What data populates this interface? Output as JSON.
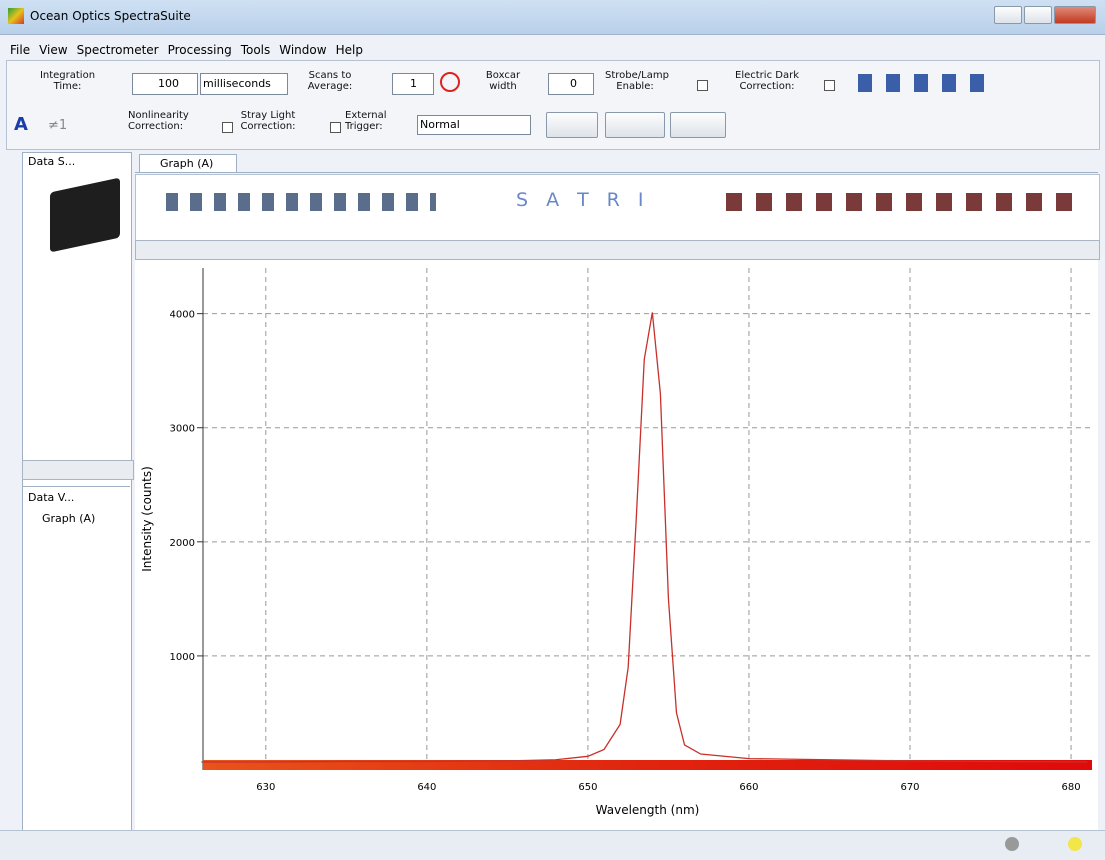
{
  "window": {
    "title": "Ocean Optics SpectraSuite"
  },
  "menu": [
    "File",
    "View",
    "Spectrometer",
    "Processing",
    "Tools",
    "Window",
    "Help"
  ],
  "toolbar": {
    "integration_time_label": "Integration Time:",
    "integration_time_value": 100,
    "integration_time_unit": "milliseconds",
    "scans_label": "Scans to Average:",
    "scans_value": 1,
    "boxcar_label": "Boxcar width",
    "boxcar_value": 0,
    "strobe_label": "Strobe/Lamp Enable:",
    "dark_label": "Electric Dark Correction:",
    "font_icon": "A",
    "not_equal_icon": "≠1",
    "nonlinearity_label": "Nonlinearity Correction:",
    "stray_label": "Stray Light Correction:",
    "trigger_label": "External Trigger:",
    "trigger_mode": "Normal"
  },
  "panels": {
    "data_sources": "Data S...",
    "data_views": "Data V...",
    "tree_item": "Graph (A)",
    "tab": "Graph (A)"
  },
  "graph_toolbar_letters": [
    "S",
    "A",
    "T",
    "R",
    "I"
  ],
  "chart_data": {
    "type": "line",
    "x_label": "Wavelength (nm)",
    "y_label": "Intensity (counts)",
    "x": [
      626,
      630,
      635,
      640,
      645,
      648,
      650,
      651,
      652,
      652.5,
      653,
      653.5,
      654,
      654.5,
      655,
      655.5,
      656,
      657,
      660,
      665,
      670,
      675,
      681
    ],
    "series": [
      {
        "color": "#c8302a",
        "values": [
          70,
          70,
          75,
          75,
          80,
          90,
          120,
          180,
          400,
          900,
          2200,
          3600,
          4010,
          3300,
          1500,
          500,
          220,
          140,
          100,
          90,
          80,
          75,
          70
        ]
      }
    ],
    "xlim": [
      626.1,
      681.3
    ],
    "xticks": [
      630,
      640,
      650,
      660,
      670,
      680
    ],
    "ylim": [
      0,
      4400
    ],
    "yticks": [
      1000,
      2000,
      3000,
      4000
    ],
    "grid": true
  }
}
